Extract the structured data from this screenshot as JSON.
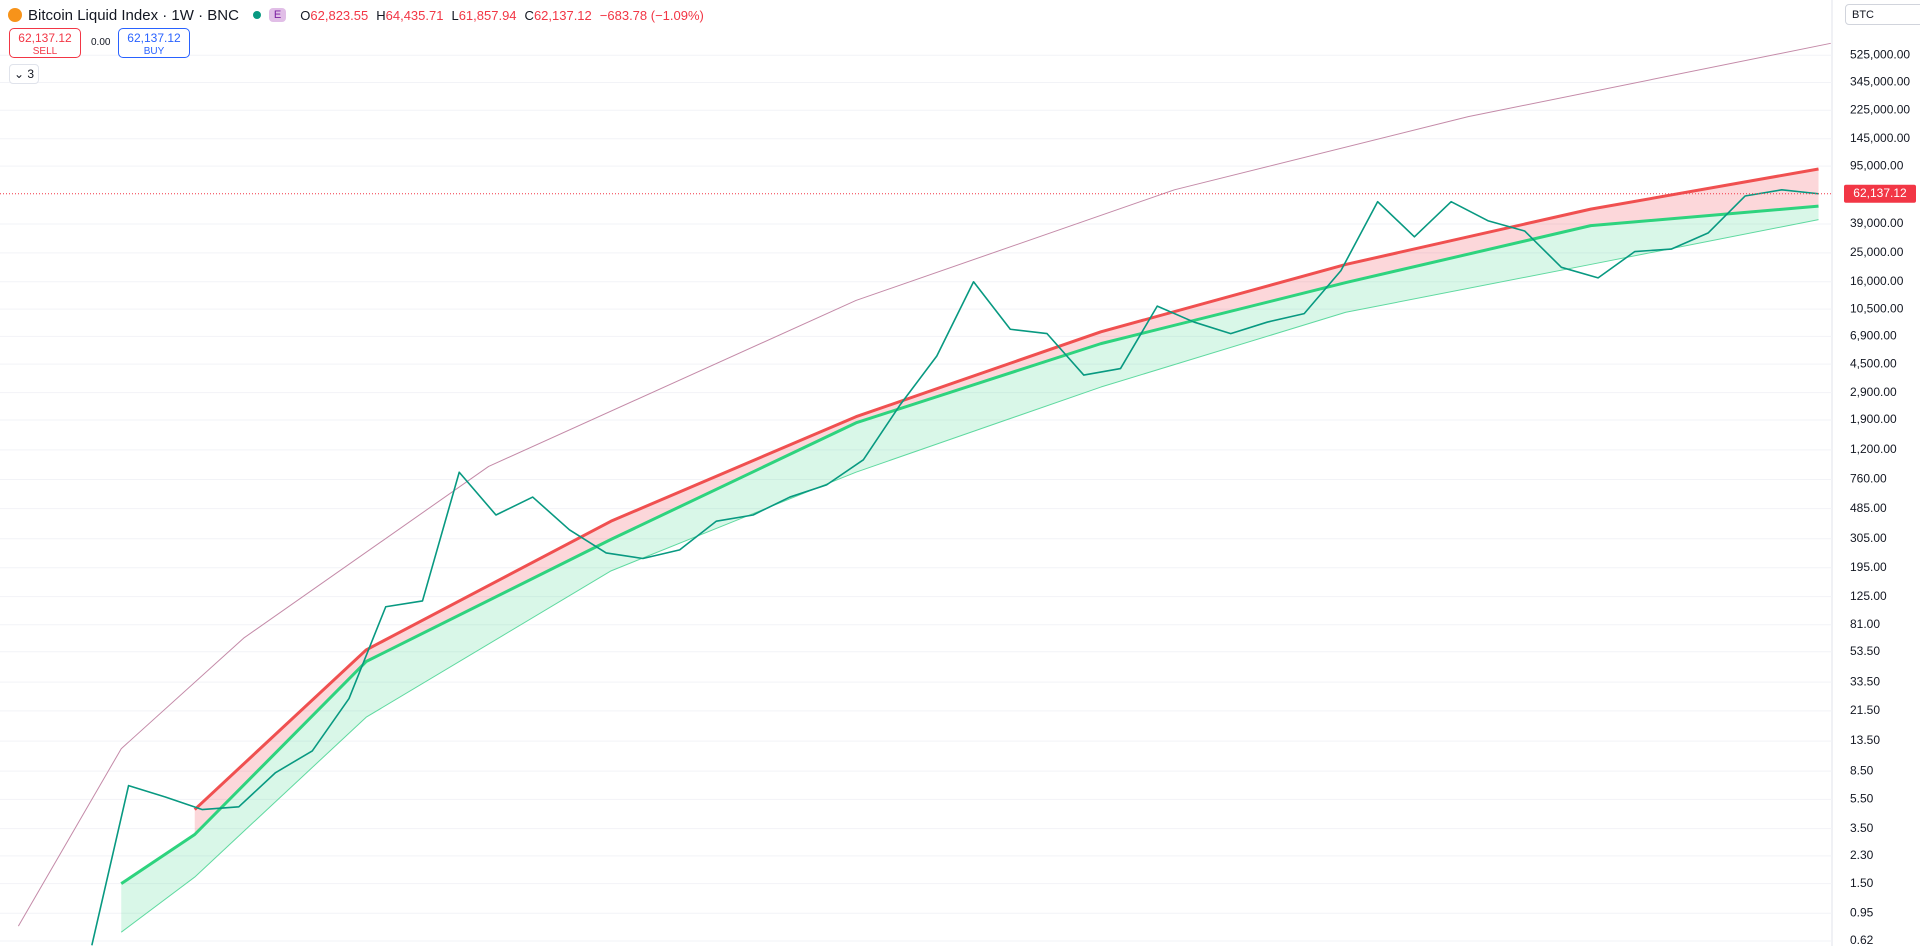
{
  "header": {
    "title": "Bitcoin Liquid Index · 1W · BNC",
    "badge": "E",
    "ohlc": [
      {
        "key": "O",
        "value": "62,823.55"
      },
      {
        "key": "H",
        "value": "64,435.71"
      },
      {
        "key": "L",
        "value": "61,857.94"
      },
      {
        "key": "C",
        "value": "62,137.12"
      }
    ],
    "change": "−683.78 (−1.09%)",
    "sell": {
      "price": "62,137.12",
      "label": "SELL"
    },
    "spread": "0.00",
    "buy": {
      "price": "62,137.12",
      "label": "BUY"
    },
    "indicators_count": "3",
    "symbol_select": "BTC"
  },
  "chart_data": {
    "type": "line",
    "log_scale": true,
    "grid": true,
    "ylim": [
      0.574,
      1230000
    ],
    "xlim": [
      -37.5,
      710.5
    ],
    "yticks": [
      {
        "value": 525000,
        "label": "525,000.00"
      },
      {
        "value": 345000,
        "label": "345,000.00"
      },
      {
        "value": 225000,
        "label": "225,000.00"
      },
      {
        "value": 145000,
        "label": "145,000.00"
      },
      {
        "value": 95000,
        "label": "95,000.00"
      },
      {
        "value": 39000,
        "label": "39,000.00"
      },
      {
        "value": 25000,
        "label": "25,000.00"
      },
      {
        "value": 16000,
        "label": "16,000.00"
      },
      {
        "value": 10500,
        "label": "10,500.00"
      },
      {
        "value": 6900,
        "label": "6,900.00"
      },
      {
        "value": 4500,
        "label": "4,500.00"
      },
      {
        "value": 2900,
        "label": "2,900.00"
      },
      {
        "value": 1900,
        "label": "1,900.00"
      },
      {
        "value": 1200,
        "label": "1,200.00"
      },
      {
        "value": 760,
        "label": "760.00"
      },
      {
        "value": 485,
        "label": "485.00"
      },
      {
        "value": 305,
        "label": "305.00"
      },
      {
        "value": 195,
        "label": "195.00"
      },
      {
        "value": 125,
        "label": "125.00"
      },
      {
        "value": 81,
        "label": "81.00"
      },
      {
        "value": 53.5,
        "label": "53.50"
      },
      {
        "value": 33.5,
        "label": "33.50"
      },
      {
        "value": 21.5,
        "label": "21.50"
      },
      {
        "value": 13.5,
        "label": "13.50"
      },
      {
        "value": 8.5,
        "label": "8.50"
      },
      {
        "value": 5.5,
        "label": "5.50"
      },
      {
        "value": 3.5,
        "label": "3.50"
      },
      {
        "value": 2.3,
        "label": "2.30"
      },
      {
        "value": 1.5,
        "label": "1.50"
      },
      {
        "value": 0.95,
        "label": "0.95"
      },
      {
        "value": 0.62,
        "label": "0.62"
      }
    ],
    "price_label": "62,137.12",
    "series": [
      {
        "color": "#089981",
        "width": 1.6,
        "x": [
          0,
          15,
          30,
          45,
          60,
          75,
          90,
          105,
          120,
          135,
          150,
          165,
          180,
          195,
          210,
          225,
          240,
          255,
          270,
          285,
          300,
          315,
          330,
          345,
          360,
          375,
          390,
          405,
          420,
          435,
          450,
          465,
          480,
          495,
          510,
          525,
          540,
          555,
          570,
          585,
          600,
          615,
          630,
          645,
          660,
          675,
          690,
          705
        ],
        "values": [
          0.58,
          6.8,
          5.7,
          4.7,
          4.9,
          8.3,
          11.6,
          26,
          107,
          117,
          850,
          440,
          580,
          350,
          245,
          225,
          257,
          400,
          440,
          580,
          700,
          1030,
          2400,
          5100,
          16000,
          7700,
          7200,
          3800,
          4200,
          11000,
          8600,
          7200,
          8600,
          9800,
          19000,
          55000,
          32000,
          55000,
          41000,
          35000,
          20000,
          17000,
          25500,
          26500,
          34000,
          60000,
          66000,
          62137.12
        ]
      },
      {
        "color": "#c48aa8",
        "width": 1,
        "x": [
          -30,
          12,
          62,
          162,
          312,
          442,
          562,
          710
        ],
        "values": [
          0.78,
          12,
          66,
          930,
          12000,
          66000,
          204000,
          631000
        ]
      },
      {
        "color": "#f05050",
        "width": 3,
        "fill": "#f2364533",
        "x": [
          12,
          42,
          112,
          212,
          312,
          412,
          512,
          612,
          705
        ],
        "values": [
          null,
          4.7,
          55,
          400,
          2000,
          7400,
          20900,
          49000,
          91000
        ]
      },
      {
        "color": "#2ed37e",
        "width": 3,
        "fill": "#2ed37e2e",
        "x": [
          12,
          42,
          112,
          212,
          312,
          412,
          512,
          612,
          705
        ],
        "values": [
          1.5,
          3.2,
          46,
          302,
          1820,
          6170,
          15800,
          38000,
          51300
        ]
      },
      {
        "color": "#5fd9a0",
        "width": 1,
        "x": [
          12,
          42,
          112,
          212,
          312,
          412,
          512,
          612,
          705
        ],
        "values": [
          0.71,
          1.66,
          19.5,
          186,
          851,
          3160,
          10000,
          20900,
          41700
        ]
      }
    ]
  }
}
